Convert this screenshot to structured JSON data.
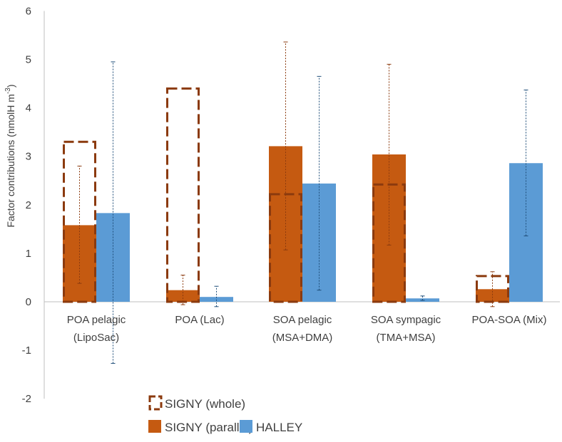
{
  "chart_data": {
    "type": "bar",
    "title": "",
    "xlabel": "",
    "ylabel": "Factor contributions (nmolH m",
    "ylabel_sup": "-3",
    "ylabel_end": ")",
    "ylim": [
      -2,
      6
    ],
    "yticks": [
      -2,
      -1,
      0,
      1,
      2,
      3,
      4,
      5,
      6
    ],
    "grid": false,
    "categories": [
      [
        "POA pelagic",
        "(LipoSac)"
      ],
      [
        "POA (Lac)",
        ""
      ],
      [
        "SOA pelagic",
        "(MSA+DMA)"
      ],
      [
        "SOA sympagic",
        "(TMA+MSA)"
      ],
      [
        "POA-SOA (Mix)",
        ""
      ]
    ],
    "series": [
      {
        "name": "SIGNY  (whole)",
        "style": "dashed-outline",
        "color": "#8B3A0E",
        "values": [
          3.3,
          4.4,
          2.22,
          2.42,
          0.53
        ]
      },
      {
        "name": "SIGNY  (parallel)",
        "style": "filled",
        "color": "#C55A11",
        "values": [
          1.58,
          0.24,
          3.21,
          3.04,
          0.26
        ],
        "err_low": [
          0.38,
          -0.06,
          1.07,
          1.17,
          -0.1
        ],
        "err_high": [
          2.8,
          0.55,
          5.36,
          4.9,
          0.62
        ]
      },
      {
        "name": "HALLEY",
        "style": "filled",
        "color": "#5B9BD5",
        "values": [
          1.83,
          0.1,
          2.44,
          0.07,
          2.86
        ],
        "err_low": [
          -1.27,
          -0.1,
          0.24,
          0.03,
          1.36
        ],
        "err_high": [
          4.95,
          0.32,
          4.65,
          0.12,
          4.37
        ]
      }
    ],
    "legend_position": "bottom-left"
  }
}
